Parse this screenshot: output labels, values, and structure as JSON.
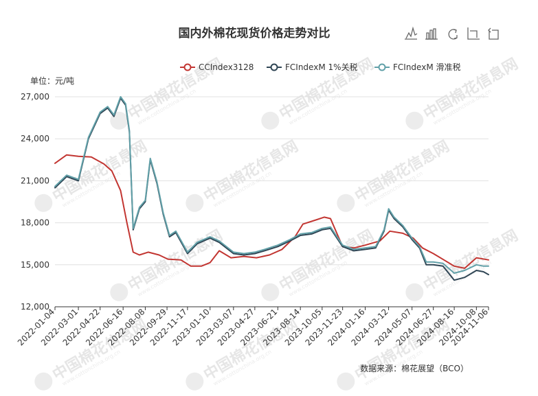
{
  "chart_data": {
    "type": "line",
    "title": "国内外棉花现货价格走势对比",
    "unit_label": "单位：元/吨",
    "source_label": "数据来源：棉花展望（BCO）",
    "ylim": [
      12000,
      27000
    ],
    "yticks": [
      "12,000",
      "15,000",
      "18,000",
      "21,000",
      "24,000",
      "27,000"
    ],
    "ytick_values": [
      12000,
      15000,
      18000,
      21000,
      24000,
      27000
    ],
    "xlim": [
      "2022-01-04",
      "2024-11-06"
    ],
    "xticks": [
      "2022-01-04",
      "2022-03-01",
      "2022-04-22",
      "2022-06-16",
      "2022-08-08",
      "2022-09-29",
      "2022-11-17",
      "2023-01-10",
      "2023-03-07",
      "2023-04-27",
      "2023-06-21",
      "2023-08-14",
      "2023-10-05",
      "2023-11-23",
      "2024-01-16",
      "2024-03-12",
      "2024-05-07",
      "2024-06-27",
      "2024-08-16",
      "2024-10-08",
      "2024-11-06"
    ],
    "grid": true,
    "legend_position": "top-right",
    "series": [
      {
        "name": "CCIndex3128",
        "color": "#c23531",
        "x": [
          "2022-01-04",
          "2022-02-01",
          "2022-03-01",
          "2022-04-01",
          "2022-05-01",
          "2022-05-20",
          "2022-06-10",
          "2022-06-25",
          "2022-07-10",
          "2022-07-25",
          "2022-08-15",
          "2022-09-10",
          "2022-10-01",
          "2022-11-01",
          "2022-11-25",
          "2022-12-20",
          "2023-01-10",
          "2023-02-01",
          "2023-03-01",
          "2023-04-01",
          "2023-05-01",
          "2023-06-01",
          "2023-07-01",
          "2023-08-01",
          "2023-08-20",
          "2023-09-20",
          "2023-10-10",
          "2023-10-25",
          "2023-11-23",
          "2023-12-20",
          "2024-01-16",
          "2024-02-20",
          "2024-03-15",
          "2024-04-15",
          "2024-05-10",
          "2024-06-01",
          "2024-06-27",
          "2024-07-25",
          "2024-08-16",
          "2024-09-10",
          "2024-10-08",
          "2024-11-06"
        ],
        "values": [
          22250,
          22850,
          22750,
          22700,
          22200,
          21700,
          20300,
          18000,
          15900,
          15700,
          15900,
          15700,
          15400,
          15350,
          14900,
          14900,
          15150,
          16000,
          15500,
          15600,
          15500,
          15700,
          16100,
          17000,
          17900,
          18200,
          18400,
          18300,
          16300,
          16200,
          16400,
          16700,
          17400,
          17250,
          16900,
          16200,
          15800,
          15300,
          14900,
          14750,
          15500,
          15350
        ]
      },
      {
        "name": "FCIndexM 1%关税",
        "color": "#2f4554",
        "x": [
          "2022-01-04",
          "2022-02-01",
          "2022-03-01",
          "2022-03-25",
          "2022-04-22",
          "2022-05-10",
          "2022-05-25",
          "2022-06-10",
          "2022-06-22",
          "2022-07-01",
          "2022-07-10",
          "2022-07-25",
          "2022-08-08",
          "2022-08-20",
          "2022-09-05",
          "2022-09-20",
          "2022-10-05",
          "2022-10-20",
          "2022-11-17",
          "2022-12-10",
          "2023-01-10",
          "2023-02-01",
          "2023-03-07",
          "2023-04-01",
          "2023-04-27",
          "2023-05-20",
          "2023-06-21",
          "2023-07-20",
          "2023-08-14",
          "2023-09-10",
          "2023-10-05",
          "2023-10-25",
          "2023-11-23",
          "2023-12-20",
          "2024-01-16",
          "2024-02-10",
          "2024-03-01",
          "2024-03-12",
          "2024-03-25",
          "2024-04-15",
          "2024-05-07",
          "2024-05-25",
          "2024-06-10",
          "2024-06-27",
          "2024-07-20",
          "2024-08-16",
          "2024-09-10",
          "2024-10-08",
          "2024-10-25",
          "2024-11-06"
        ],
        "values": [
          20500,
          21300,
          21000,
          24000,
          25800,
          26200,
          25600,
          26900,
          26400,
          24500,
          17500,
          19000,
          19500,
          22500,
          20800,
          18600,
          17000,
          17300,
          15800,
          16500,
          16900,
          16600,
          15800,
          15700,
          15800,
          16000,
          16300,
          16700,
          17100,
          17200,
          17500,
          17600,
          16300,
          16000,
          16100,
          16200,
          17400,
          18900,
          18300,
          17700,
          16800,
          16200,
          15000,
          15000,
          14900,
          13900,
          14100,
          14600,
          14500,
          14300
        ]
      },
      {
        "name": "FCIndexM 滑准税",
        "color": "#61a0a8",
        "x": [
          "2022-01-04",
          "2022-02-01",
          "2022-03-01",
          "2022-03-25",
          "2022-04-22",
          "2022-05-10",
          "2022-05-25",
          "2022-06-10",
          "2022-06-22",
          "2022-07-01",
          "2022-07-10",
          "2022-07-25",
          "2022-08-08",
          "2022-08-20",
          "2022-09-05",
          "2022-09-20",
          "2022-10-05",
          "2022-10-20",
          "2022-11-17",
          "2022-12-10",
          "2023-01-10",
          "2023-02-01",
          "2023-03-07",
          "2023-04-01",
          "2023-04-27",
          "2023-05-20",
          "2023-06-21",
          "2023-07-20",
          "2023-08-14",
          "2023-09-10",
          "2023-10-05",
          "2023-10-25",
          "2023-11-23",
          "2023-12-20",
          "2024-01-16",
          "2024-02-10",
          "2024-03-01",
          "2024-03-12",
          "2024-03-25",
          "2024-04-15",
          "2024-05-07",
          "2024-05-25",
          "2024-06-10",
          "2024-06-27",
          "2024-07-20",
          "2024-08-16",
          "2024-09-10",
          "2024-10-08",
          "2024-10-25",
          "2024-11-06"
        ],
        "values": [
          20600,
          21400,
          21100,
          24100,
          25900,
          26300,
          25700,
          27000,
          26500,
          24600,
          17600,
          19100,
          19600,
          22600,
          20900,
          18700,
          17100,
          17400,
          15900,
          16600,
          17000,
          16700,
          15900,
          15800,
          15900,
          16100,
          16400,
          16800,
          17200,
          17300,
          17600,
          17700,
          16400,
          16100,
          16200,
          16300,
          17500,
          19000,
          18400,
          17800,
          16900,
          16300,
          15200,
          15200,
          15100,
          14400,
          14600,
          15000,
          14900,
          14900
        ]
      }
    ]
  },
  "toolbar": {
    "icons": [
      "line-chart-icon",
      "bar-chart-icon",
      "restore-icon",
      "data-zoom-icon",
      "zoom-reset-icon"
    ]
  },
  "watermark": {
    "text": "中国棉花信息网",
    "sub": "www.cottonchina.org.cn"
  }
}
